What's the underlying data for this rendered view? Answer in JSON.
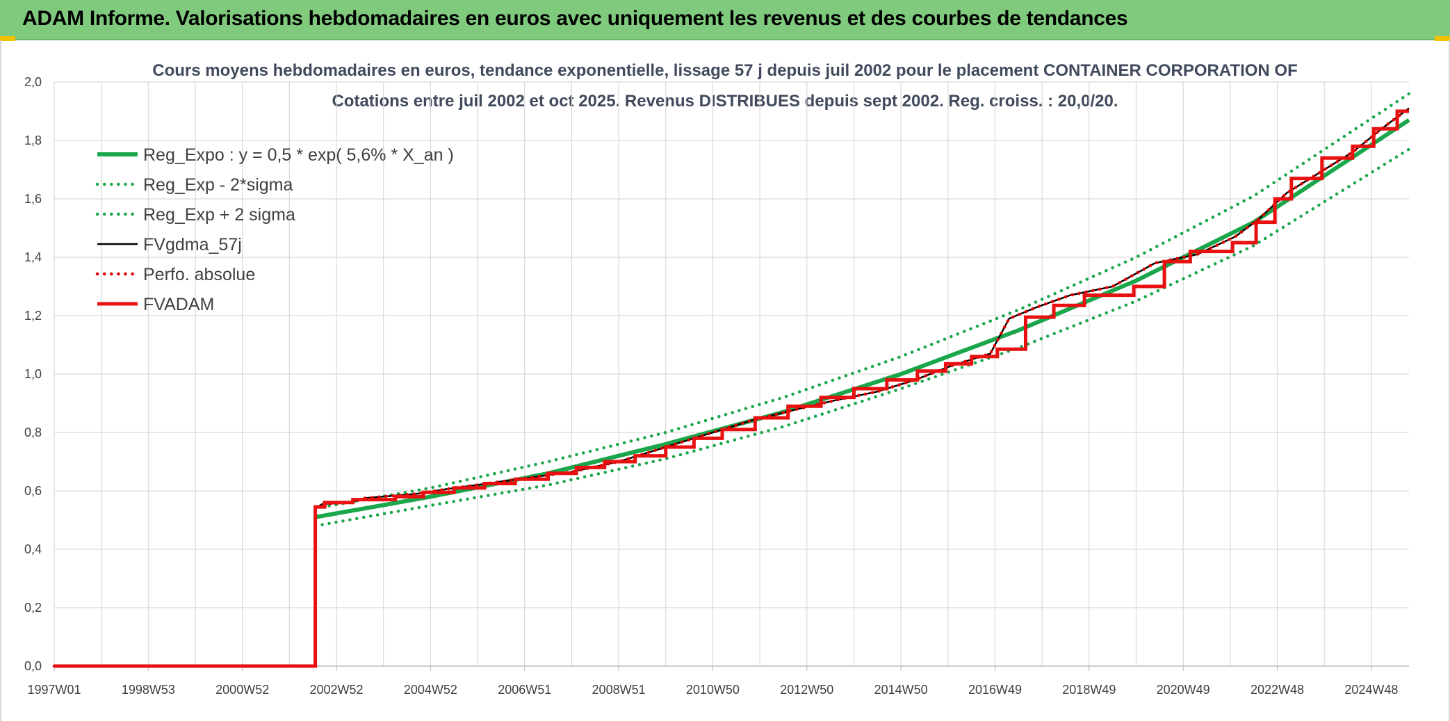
{
  "page": {
    "header_title": "ADAM Informe. Valorisations hebdomadaires en euros avec uniquement les revenus et des courbes de tendances"
  },
  "colors": {
    "header_bg": "#7fca7d",
    "reg_expo": "#1aa64a",
    "reg_bands": "#1aa64a",
    "fvgdma": "#000000",
    "perfo": "#e00000",
    "fvadam": "#e81010",
    "grid": "#d9d9d9"
  },
  "chart_data": {
    "type": "line",
    "title_line1": "Cours moyens hebdomadaires en euros, tendance exponentielle, lissage 57 j depuis juil 2002 pour le placement CONTAINER CORPORATION OF",
    "title_line2": "Cotations entre juil 2002 et oct 2025. Revenus DISTRIBUES depuis sept 2002. Reg. croiss. : 20,0/20.",
    "xlabel": "",
    "ylabel": "",
    "ylim": [
      0,
      2.0
    ],
    "xlim": [
      1997.0,
      2025.8
    ],
    "grid": true,
    "legend_position": "top-left",
    "x_ticks": [
      "1997W01",
      "1998W53",
      "2000W52",
      "2002W52",
      "2004W52",
      "2006W51",
      "2008W51",
      "2010W50",
      "2012W50",
      "2014W50",
      "2016W49",
      "2018W49",
      "2020W49",
      "2022W48",
      "2024W48"
    ],
    "x_tick_years": [
      1997.0,
      1999.0,
      2001.0,
      2003.0,
      2005.0,
      2007.0,
      2009.0,
      2011.0,
      2013.0,
      2015.0,
      2017.0,
      2019.0,
      2021.0,
      2023.0,
      2025.0
    ],
    "y_ticks": [
      "0,0",
      "0,2",
      "0,4",
      "0,6",
      "0,8",
      "1,0",
      "1,2",
      "1,4",
      "1,6",
      "1,8",
      "2,0"
    ],
    "y_tick_values": [
      0,
      0.2,
      0.4,
      0.6,
      0.8,
      1.0,
      1.2,
      1.4,
      1.6,
      1.8,
      2.0
    ],
    "series": [
      {
        "name": "Reg_Expo : y = 0,5 * exp( 5,6% *  X_an )",
        "style": "solid-thick",
        "color": "#1aa64a",
        "x": [
          2002.55,
          2005,
          2007.5,
          2010,
          2012.5,
          2015,
          2017.5,
          2020,
          2022.5,
          2025.8
        ],
        "y": [
          0.51,
          0.58,
          0.66,
          0.76,
          0.87,
          1.0,
          1.15,
          1.32,
          1.52,
          1.87
        ]
      },
      {
        "name": "Reg_Exp - 2*sigma",
        "style": "dotted",
        "color": "#1aa64a",
        "x": [
          2002.55,
          2005,
          2007.5,
          2010,
          2012.5,
          2015,
          2017.5,
          2020,
          2022.5,
          2025.8
        ],
        "y": [
          0.48,
          0.55,
          0.62,
          0.71,
          0.82,
          0.95,
          1.09,
          1.25,
          1.44,
          1.77
        ]
      },
      {
        "name": "Reg_Exp + 2 sigma",
        "style": "dotted",
        "color": "#1aa64a",
        "x": [
          2002.55,
          2005,
          2007.5,
          2010,
          2012.5,
          2015,
          2017.5,
          2020,
          2022.5,
          2025.8
        ],
        "y": [
          0.54,
          0.61,
          0.7,
          0.8,
          0.92,
          1.06,
          1.22,
          1.4,
          1.61,
          1.96
        ]
      },
      {
        "name": "FVgdma_57j",
        "style": "solid-thin",
        "color": "#000000",
        "x": [
          1997.0,
          2002.55,
          2002.55,
          2002.7,
          2003.3,
          2003.6,
          2004.7,
          2005.3,
          2006.2,
          2007.1,
          2008.0,
          2009.0,
          2010.0,
          2011.0,
          2011.8,
          2012.8,
          2013.6,
          2014.5,
          2015.3,
          2016.1,
          2016.9,
          2017.3,
          2017.9,
          2018.6,
          2019.5,
          2020.4,
          2021.3,
          2022.1,
          2022.6,
          2023.2,
          2023.9,
          2024.6,
          2025.3,
          2025.8
        ],
        "y": [
          0,
          0,
          0.54,
          0.555,
          0.56,
          0.575,
          0.59,
          0.605,
          0.625,
          0.645,
          0.665,
          0.7,
          0.75,
          0.8,
          0.84,
          0.88,
          0.91,
          0.94,
          0.98,
          1.03,
          1.07,
          1.19,
          1.23,
          1.27,
          1.3,
          1.38,
          1.41,
          1.47,
          1.53,
          1.62,
          1.69,
          1.76,
          1.85,
          1.91
        ]
      },
      {
        "name": "Perfo. absolue",
        "style": "dotted",
        "color": "#e00000",
        "x": [
          1997.0,
          2002.55,
          2002.55,
          2002.7,
          2003.3,
          2003.6,
          2004.7,
          2005.3,
          2006.2,
          2007.1,
          2008.0,
          2009.0,
          2010.0,
          2011.0,
          2011.8,
          2012.8,
          2013.6,
          2014.5,
          2015.3,
          2016.1,
          2016.9,
          2017.3,
          2017.9,
          2018.6,
          2019.5,
          2020.4,
          2021.3,
          2022.1,
          2022.6,
          2023.2,
          2023.9,
          2024.6,
          2025.3,
          2025.8
        ],
        "y": [
          0,
          0,
          0.54,
          0.555,
          0.56,
          0.575,
          0.59,
          0.605,
          0.625,
          0.645,
          0.665,
          0.7,
          0.75,
          0.8,
          0.84,
          0.88,
          0.91,
          0.94,
          0.98,
          1.03,
          1.07,
          1.19,
          1.23,
          1.27,
          1.3,
          1.38,
          1.41,
          1.47,
          1.53,
          1.62,
          1.69,
          1.76,
          1.85,
          1.91
        ]
      },
      {
        "name": "FVADAM",
        "style": "step-thick",
        "color": "#e81010",
        "x": [
          1997.0,
          2002.55,
          2002.55,
          2002.75,
          2003.35,
          2004.25,
          2004.85,
          2005.5,
          2006.15,
          2006.8,
          2007.5,
          2008.1,
          2008.7,
          2009.35,
          2010.0,
          2010.6,
          2011.2,
          2011.9,
          2012.6,
          2013.3,
          2014.0,
          2014.7,
          2015.35,
          2015.95,
          2016.5,
          2017.05,
          2017.65,
          2018.25,
          2018.9,
          2019.95,
          2020.6,
          2021.15,
          2022.05,
          2022.55,
          2022.95,
          2023.3,
          2023.95,
          2024.6,
          2025.05,
          2025.55
        ],
        "y": [
          0,
          0,
          0.545,
          0.56,
          0.57,
          0.58,
          0.595,
          0.61,
          0.625,
          0.64,
          0.66,
          0.68,
          0.7,
          0.72,
          0.75,
          0.78,
          0.81,
          0.85,
          0.89,
          0.92,
          0.95,
          0.98,
          1.01,
          1.035,
          1.06,
          1.085,
          1.195,
          1.235,
          1.27,
          1.3,
          1.385,
          1.42,
          1.45,
          1.52,
          1.6,
          1.67,
          1.74,
          1.78,
          1.84,
          1.9
        ]
      }
    ]
  }
}
